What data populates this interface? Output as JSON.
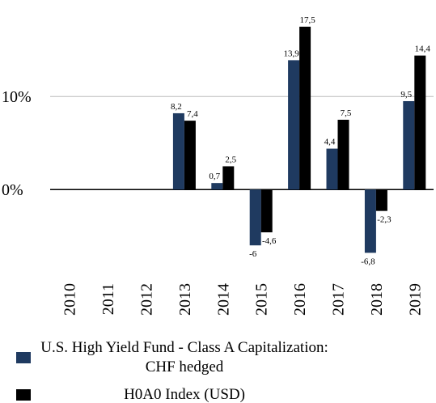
{
  "chart_data": {
    "type": "bar",
    "categories": [
      "2010",
      "2011",
      "2012",
      "2013",
      "2014",
      "2015",
      "2016",
      "2017",
      "2018",
      "2019"
    ],
    "series": [
      {
        "name": "U.S. High Yield Fund - Class A Capitalization: CHF hedged",
        "color": "#1f3a60",
        "values": [
          null,
          null,
          null,
          8.2,
          0.7,
          -6,
          13.9,
          4.4,
          -6.8,
          9.5
        ],
        "value_labels": [
          null,
          null,
          null,
          "8,2",
          "0,7",
          "-6",
          "13,9",
          "4,4",
          "-6,8",
          "9,5"
        ]
      },
      {
        "name": "H0A0 Index (USD)",
        "color": "#000000",
        "values": [
          null,
          null,
          null,
          7.4,
          2.5,
          -4.6,
          17.5,
          7.5,
          -2.3,
          14.4
        ],
        "value_labels": [
          null,
          null,
          null,
          "7,4",
          "2,5",
          "-4,6",
          "17,5",
          "7,5",
          "-2,3",
          "14,4"
        ]
      }
    ],
    "ylim": [
      -9.2,
      19.5
    ],
    "yticks": [
      {
        "value": 0,
        "label": "0%"
      },
      {
        "value": 10,
        "label": "10%"
      }
    ],
    "grid": true
  }
}
